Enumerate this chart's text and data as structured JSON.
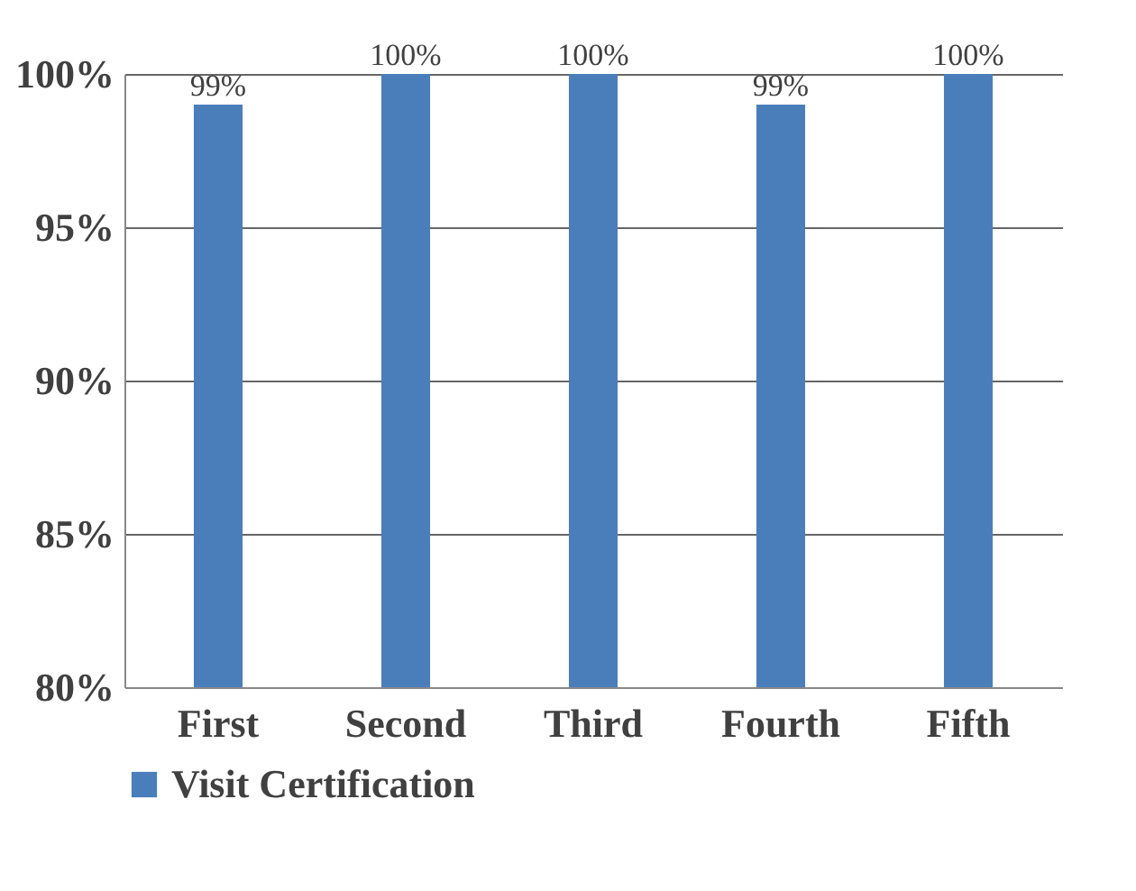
{
  "chart_data": {
    "type": "bar",
    "categories": [
      "First",
      "Second",
      "Third",
      "Fourth",
      "Fifth"
    ],
    "series": [
      {
        "name": "Visit Certification",
        "color": "#4a7ebb",
        "values": [
          99,
          100,
          100,
          99,
          100
        ]
      }
    ],
    "value_labels": [
      "99%",
      "100%",
      "100%",
      "99%",
      "100%"
    ],
    "ylim": [
      80,
      100
    ],
    "yticks": [
      {
        "value": 80,
        "label": "80%"
      },
      {
        "value": 85,
        "label": "85%"
      },
      {
        "value": 90,
        "label": "90%"
      },
      {
        "value": 95,
        "label": "95%"
      },
      {
        "value": 100,
        "label": "100%"
      }
    ],
    "grid": "y",
    "legend": "bottom"
  }
}
